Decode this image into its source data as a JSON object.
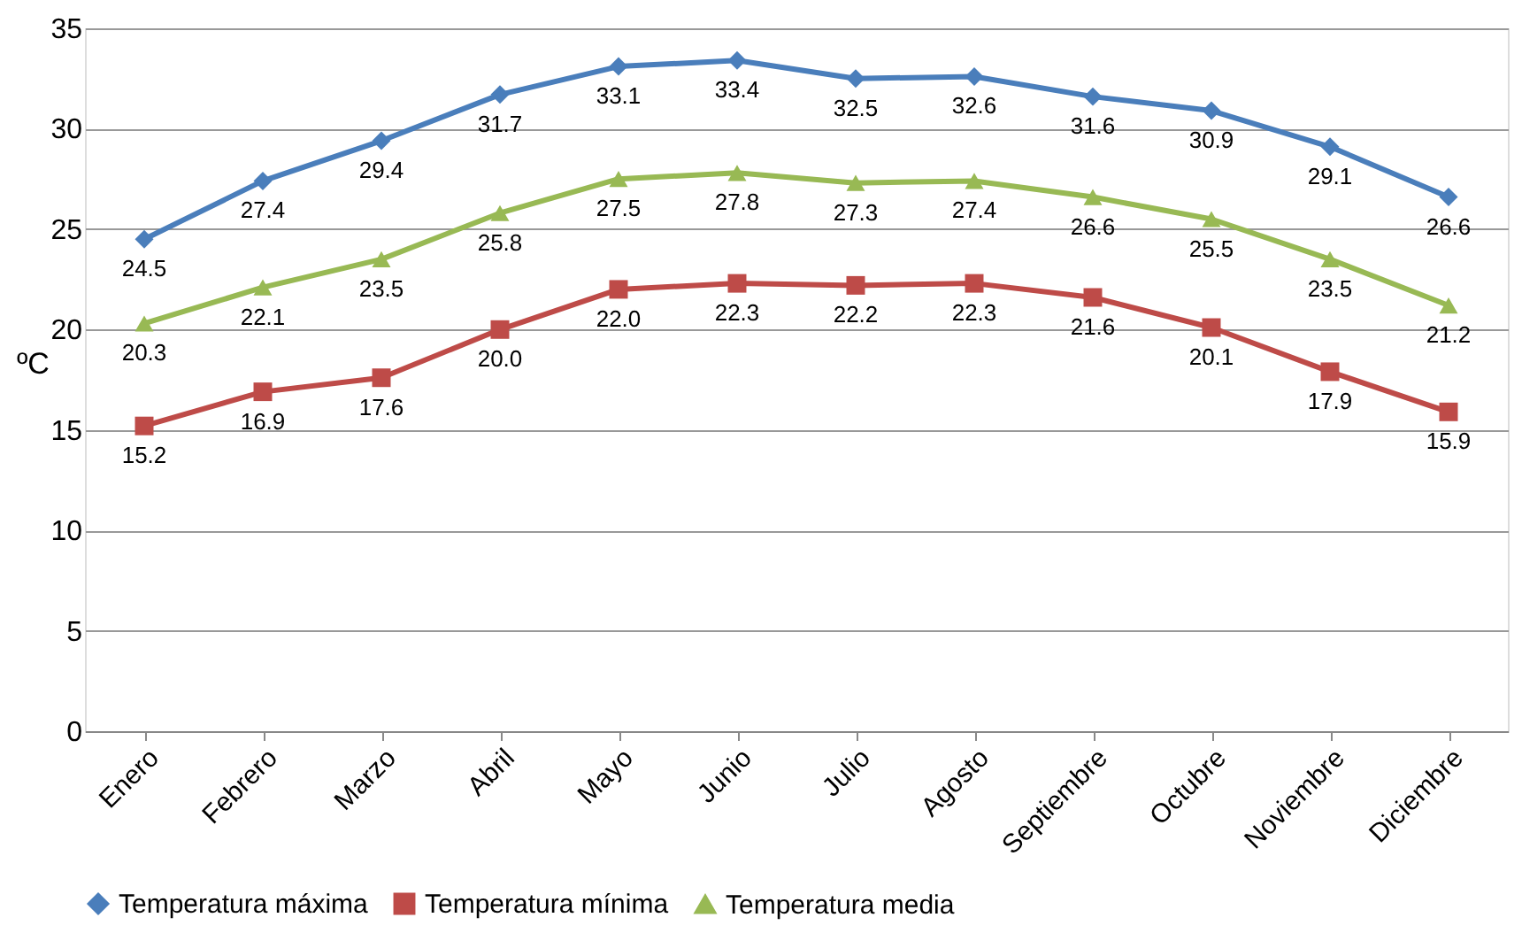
{
  "chart_data": {
    "type": "line",
    "ylabel": "ºC",
    "categories": [
      "Enero",
      "Febrero",
      "Marzo",
      "Abril",
      "Mayo",
      "Junio",
      "Julio",
      "Agosto",
      "Septiembre",
      "Octubre",
      "Noviembre",
      "Diciembre"
    ],
    "series": [
      {
        "name": "Temperatura máxima",
        "color": "#4a7ebb",
        "marker": "diamond",
        "values": [
          24.5,
          27.4,
          29.4,
          31.7,
          33.1,
          33.4,
          32.5,
          32.6,
          31.6,
          30.9,
          29.1,
          26.6
        ],
        "value_labels": [
          "24.5",
          "27.4",
          "29.4",
          "31.7",
          "33.1",
          "33.4",
          "32.5",
          "32.6",
          "31.6",
          "30.9",
          "29.1",
          "26.6"
        ]
      },
      {
        "name": "Temperatura mínima",
        "color": "#be4b48",
        "marker": "square",
        "values": [
          15.2,
          16.9,
          17.6,
          20.0,
          22.0,
          22.3,
          22.2,
          22.3,
          21.6,
          20.1,
          17.9,
          15.9
        ],
        "value_labels": [
          "15.2",
          "16.9",
          "17.6",
          "20.0",
          "22.0",
          "22.3",
          "22.2",
          "22.3",
          "21.6",
          "20.1",
          "17.9",
          "15.9"
        ]
      },
      {
        "name": "Temperatura media",
        "color": "#98b954",
        "marker": "triangle",
        "values": [
          20.3,
          22.1,
          23.5,
          25.8,
          27.5,
          27.8,
          27.3,
          27.4,
          26.6,
          25.5,
          23.5,
          21.2
        ],
        "value_labels": [
          "20.3",
          "22.1",
          "23.5",
          "25.8",
          "27.5",
          "27.8",
          "27.3",
          "27.4",
          "26.6",
          "25.5",
          "23.5",
          "21.2"
        ]
      }
    ],
    "ylim": [
      0,
      35
    ],
    "yticks": [
      0,
      5,
      10,
      15,
      20,
      25,
      30,
      35
    ],
    "grid": "y",
    "legend": "bottom",
    "line_style": "solid"
  }
}
